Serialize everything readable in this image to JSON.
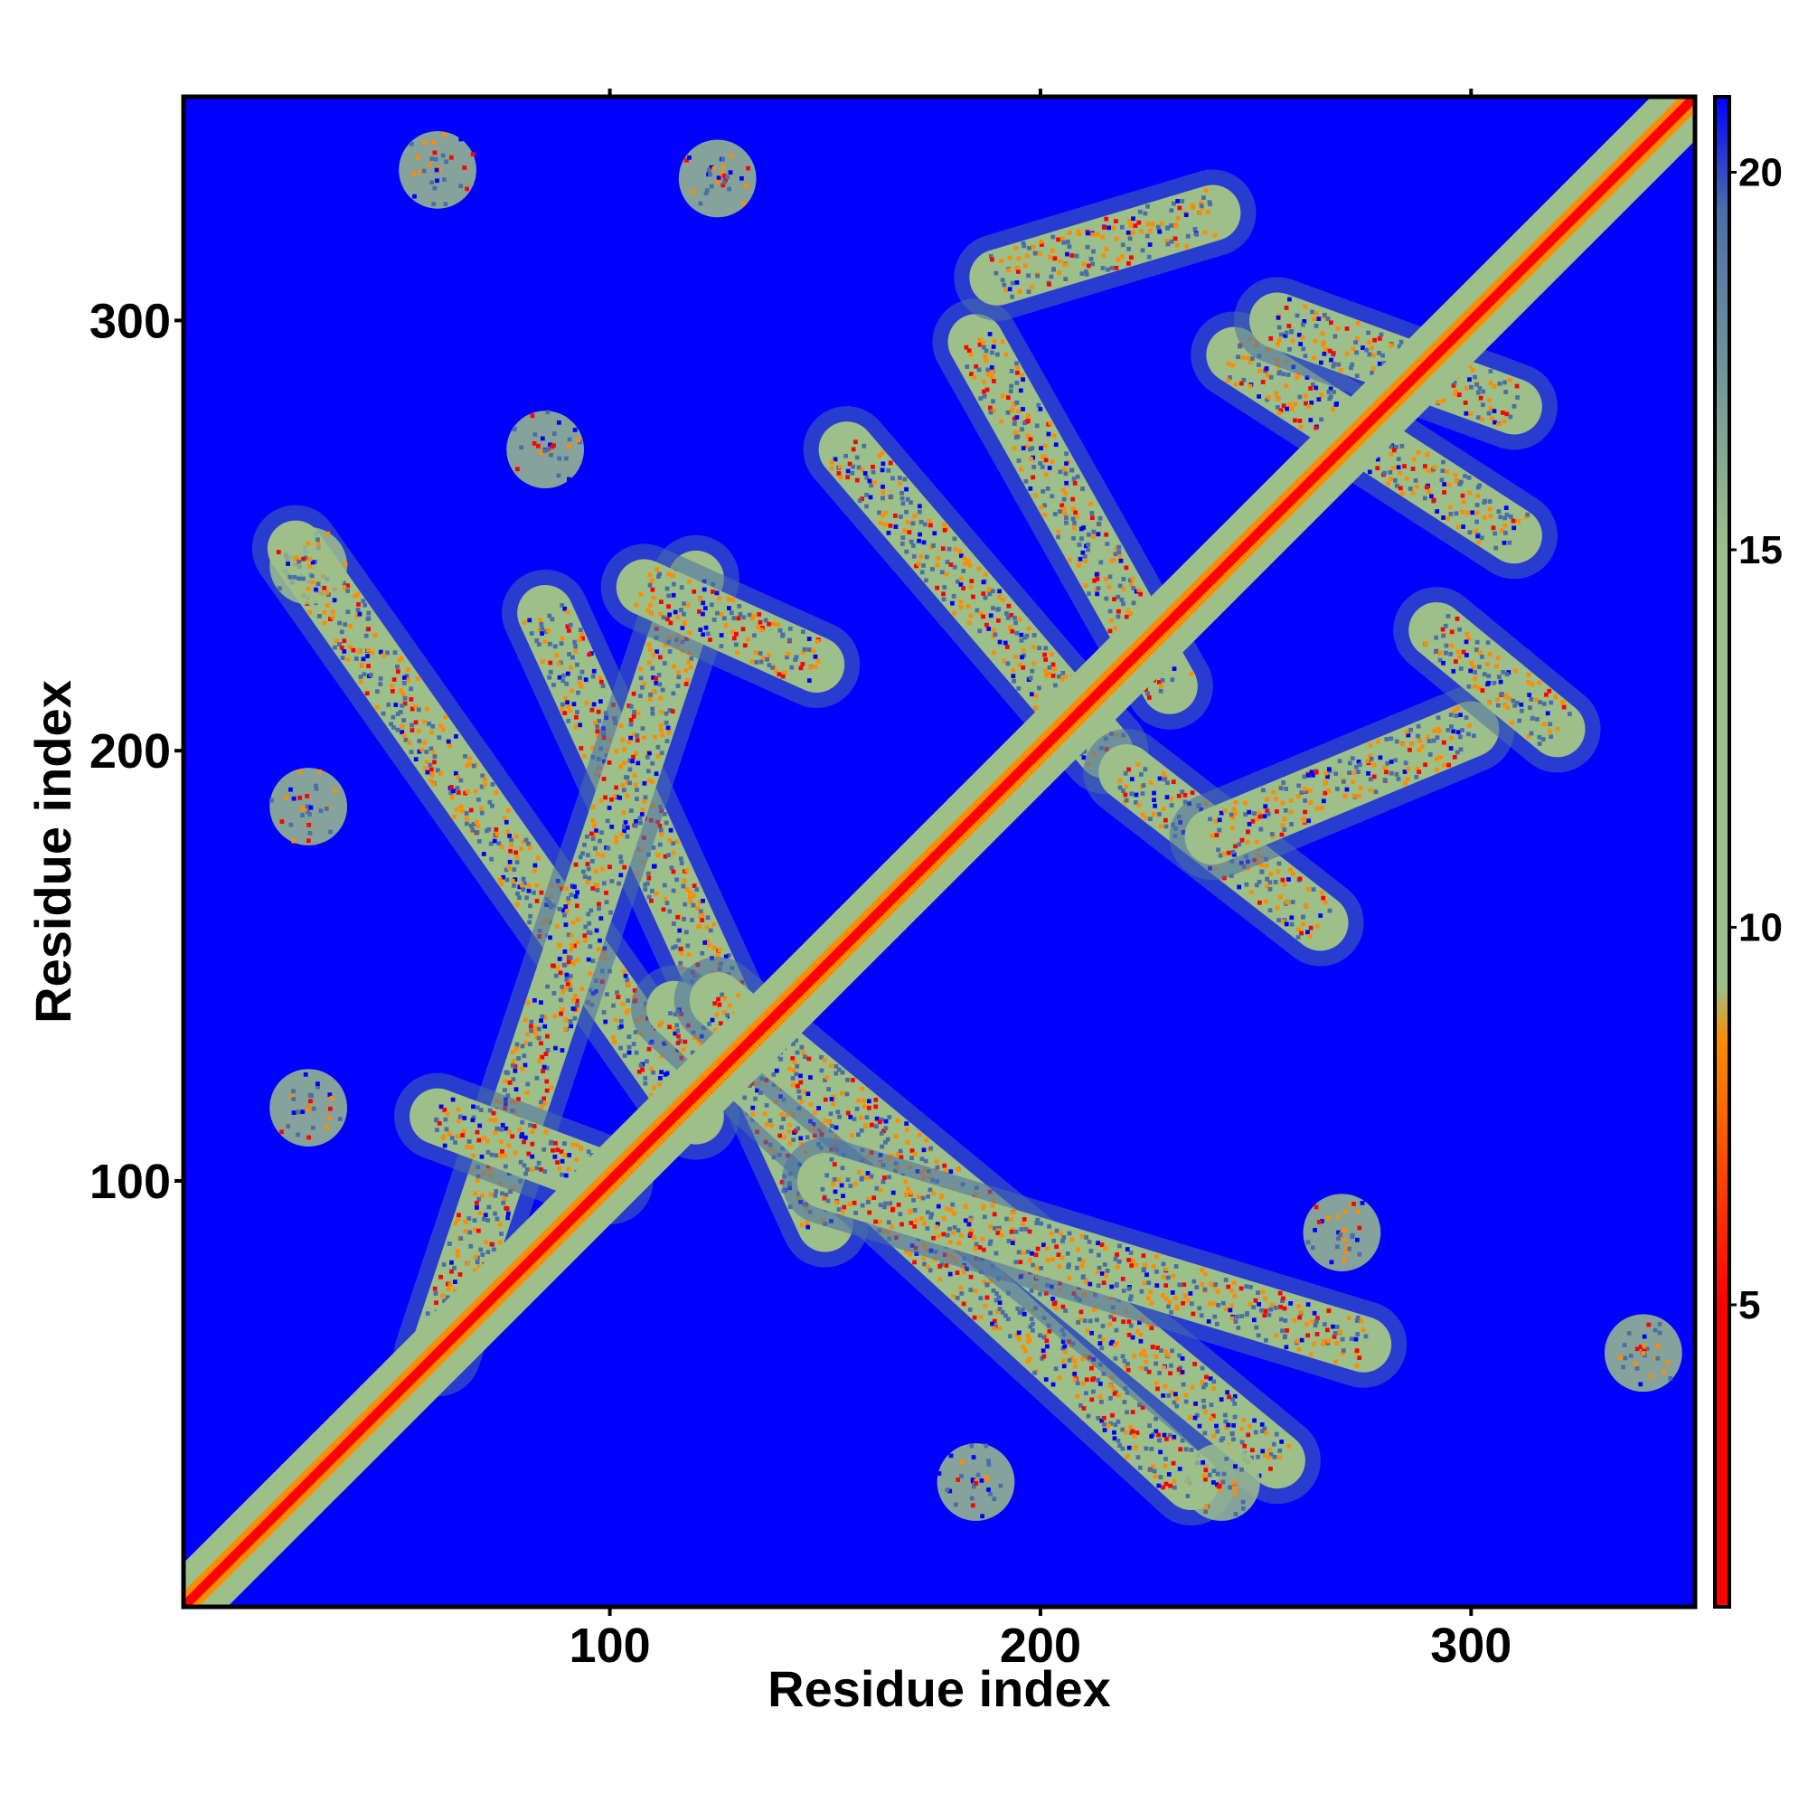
{
  "chart_data": {
    "type": "heatmap",
    "title": "",
    "xlabel": "Residue index",
    "ylabel": "Residue index",
    "xlim": [
      1,
      352
    ],
    "ylim": [
      1,
      352
    ],
    "xticks": [
      100,
      200,
      300
    ],
    "yticks": [
      100,
      200,
      300
    ],
    "colorbar": {
      "range": [
        1,
        21
      ],
      "ticks": [
        5,
        10,
        15,
        20
      ],
      "colors": [
        "#ff0000",
        "#ff8c00",
        "#9dbf8a",
        "#4a6fa8",
        "#0000ff"
      ]
    },
    "background_value": 21,
    "diagonal": {
      "from": 1,
      "to": 352
    },
    "contact_bands": [
      {
        "x": [
          27,
          120
        ],
        "y": [
          247,
          115
        ]
      },
      {
        "x": [
          85,
          150
        ],
        "y": [
          232,
          90
        ]
      },
      {
        "x": [
          120,
          60
        ],
        "y": [
          240,
          60
        ]
      },
      {
        "x": [
          108,
          148
        ],
        "y": [
          238,
          220
        ]
      },
      {
        "x": [
          115,
          235
        ],
        "y": [
          140,
          30
        ]
      },
      {
        "x": [
          125,
          255
        ],
        "y": [
          142,
          35
        ]
      },
      {
        "x": [
          150,
          275
        ],
        "y": [
          100,
          62
        ]
      },
      {
        "x": [
          60,
          100
        ],
        "y": [
          115,
          100
        ]
      },
      {
        "x": [
          155,
          215
        ],
        "y": [
          270,
          200
        ]
      },
      {
        "x": [
          185,
          230
        ],
        "y": [
          295,
          215
        ]
      },
      {
        "x": [
          220,
          265
        ],
        "y": [
          195,
          160
        ]
      },
      {
        "x": [
          240,
          300
        ],
        "y": [
          180,
          205
        ]
      },
      {
        "x": [
          245,
          310
        ],
        "y": [
          292,
          250
        ]
      },
      {
        "x": [
          255,
          310
        ],
        "y": [
          300,
          280
        ]
      },
      {
        "x": [
          190,
          240
        ],
        "y": [
          310,
          325
        ]
      },
      {
        "x": [
          292,
          320
        ],
        "y": [
          228,
          205
        ]
      }
    ],
    "contact_clusters": [
      {
        "x": 60,
        "y": 335
      },
      {
        "x": 85,
        "y": 270
      },
      {
        "x": 30,
        "y": 243
      },
      {
        "x": 30,
        "y": 187
      },
      {
        "x": 30,
        "y": 117
      },
      {
        "x": 270,
        "y": 88
      },
      {
        "x": 185,
        "y": 30
      },
      {
        "x": 242,
        "y": 30
      },
      {
        "x": 340,
        "y": 60
      },
      {
        "x": 125,
        "y": 333
      }
    ]
  },
  "axes": {
    "xlabel": "Residue index",
    "ylabel": "Residue index",
    "xtick_labels": [
      "100",
      "200",
      "300"
    ],
    "ytick_labels": [
      "100",
      "200",
      "300"
    ],
    "colorbar_labels": [
      "5",
      "10",
      "15",
      "20"
    ]
  }
}
